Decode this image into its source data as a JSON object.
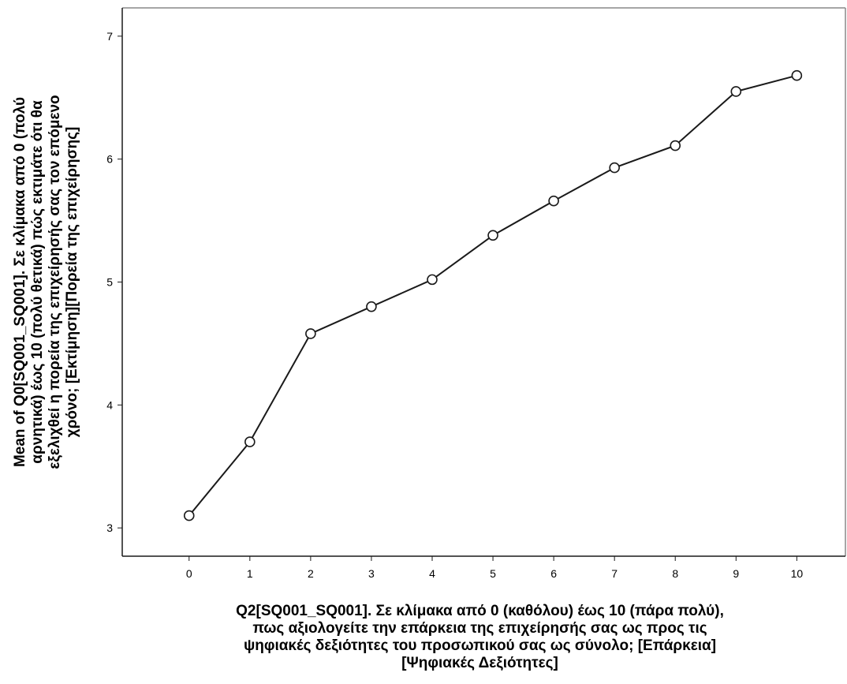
{
  "chart_data": {
    "type": "line",
    "x": [
      0,
      1,
      2,
      3,
      4,
      5,
      6,
      7,
      8,
      9,
      10
    ],
    "series": [
      {
        "values": [
          3.1,
          3.7,
          4.58,
          4.8,
          5.02,
          5.38,
          5.66,
          5.93,
          6.11,
          6.55,
          6.68
        ]
      }
    ],
    "title": "",
    "xlabel_lines": [
      "Q2[SQ001_SQ001]. Σε κλίμακα από 0 (καθόλου) έως 10 (πάρα πολύ),",
      "πως αξιολογείτε την επάρκεια της επιχείρησής σας ως προς τις",
      "ψηφιακές δεξιότητες του προσωπικού σας ως σύνολο; [Επάρκεια]",
      "[Ψηφιακές Δεξιότητες]"
    ],
    "ylabel_lines": [
      "Mean of Q0[SQ001_SQ001]. Σε κλίμακα από 0 (πολύ",
      "αρνητικά) έως 10 (πολύ θετικά) πώς εκτιμάτε ότι θα",
      "εξελιχθεί η πορεία της επιχείρησής σας τον επόμενο",
      "χρόνο; [Εκτίμηση][Πορεία  της επιχείρησης]"
    ],
    "xticks": [
      "0",
      "1",
      "2",
      "3",
      "4",
      "5",
      "6",
      "7",
      "8",
      "9",
      "10"
    ],
    "yticks": [
      "3",
      "4",
      "5",
      "6",
      "7"
    ],
    "xlim": [
      -1.1,
      10.8
    ],
    "ylim": [
      2.77,
      7.23
    ],
    "grid": false,
    "marker": "open-circle",
    "colors": {
      "line": "#1a1a1a",
      "axis": "#1a1a1a",
      "frame": "#888888"
    }
  }
}
